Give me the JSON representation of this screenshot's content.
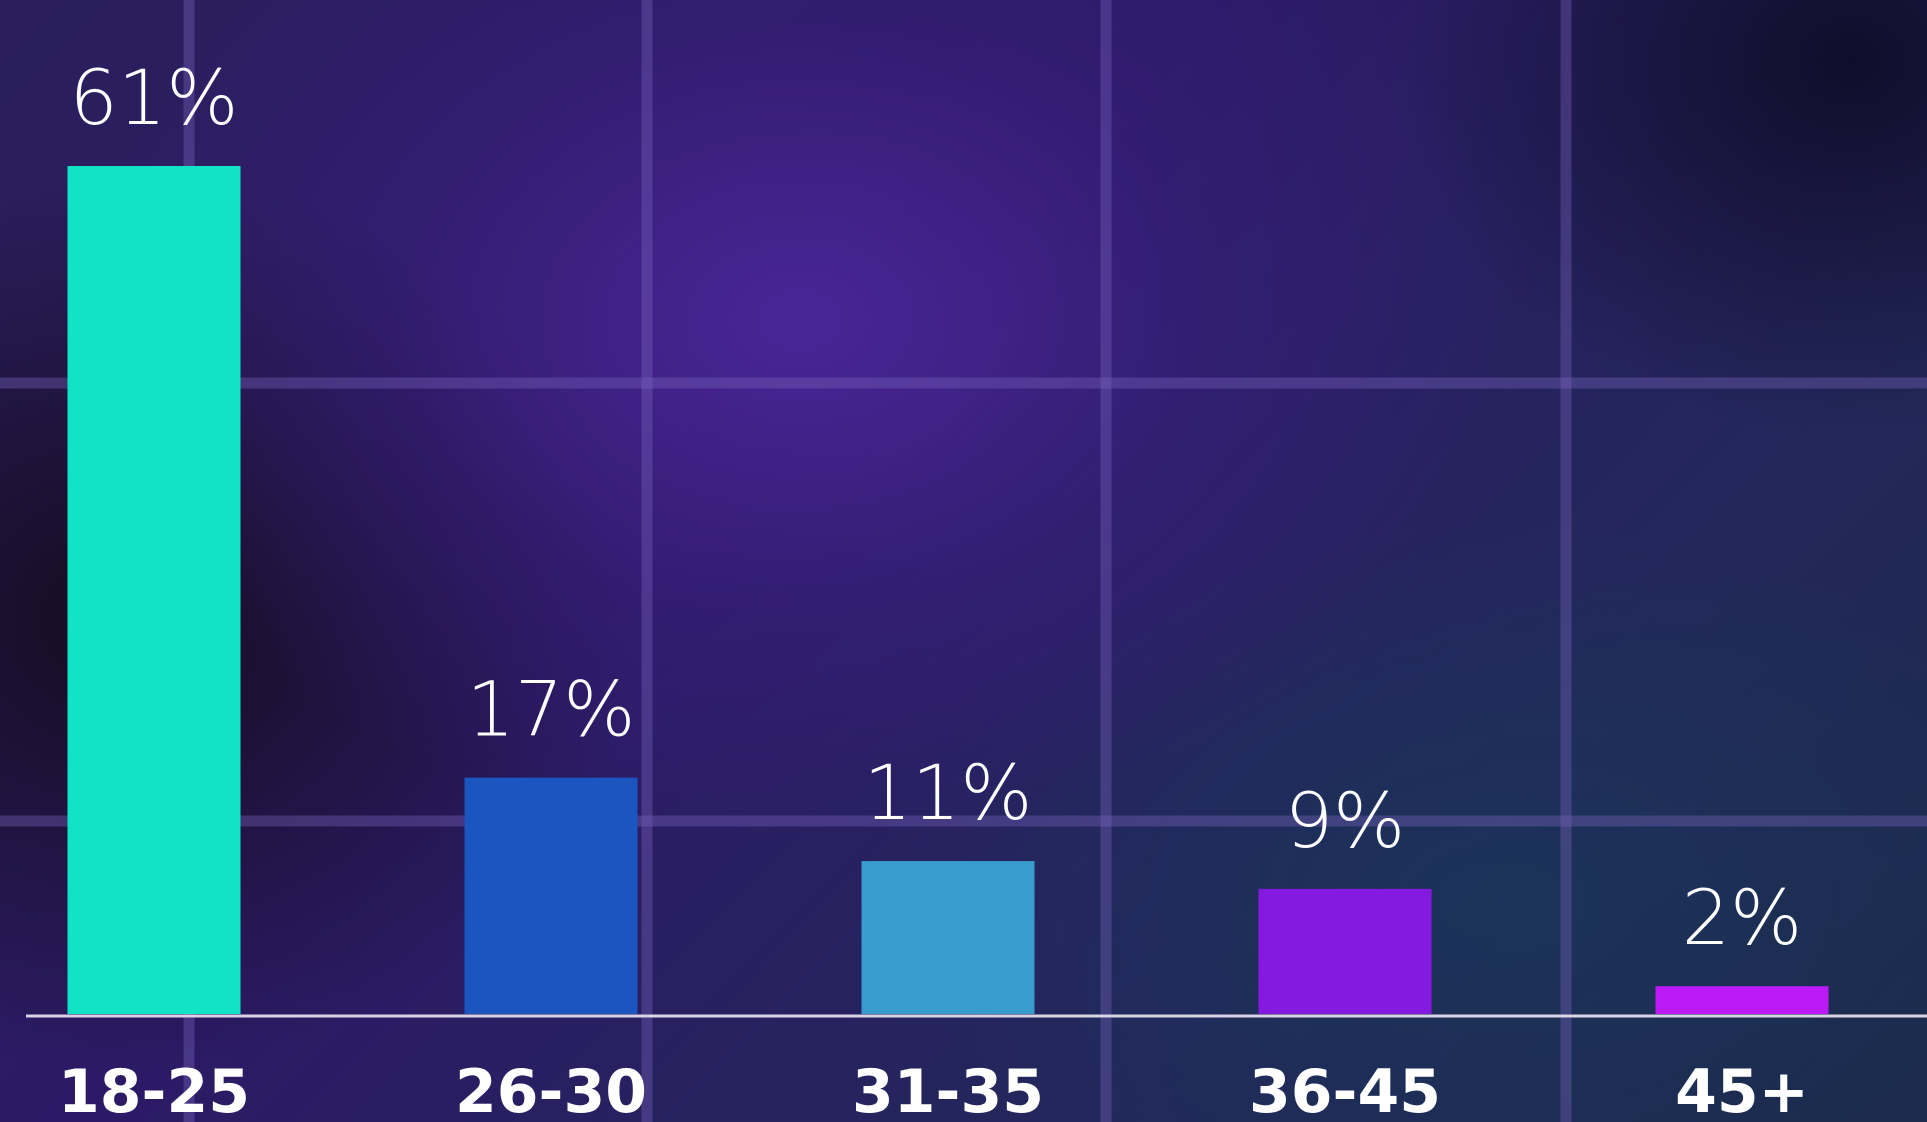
{
  "chart_data": {
    "type": "bar",
    "categories": [
      "18-25",
      "26-30",
      "31-35",
      "36-45",
      "45+"
    ],
    "values": [
      61,
      17,
      11,
      9,
      2
    ],
    "value_labels": [
      "61%",
      "17%",
      "11%",
      "9%",
      "2%"
    ],
    "unit": "%",
    "colors": [
      "#11e3c6",
      "#1b55bf",
      "#389ccf",
      "#841adf",
      "#bb1af7"
    ],
    "title": "",
    "xlabel": "",
    "ylabel": "",
    "ylim": [
      0,
      61
    ],
    "grid": true,
    "legend": "none"
  }
}
